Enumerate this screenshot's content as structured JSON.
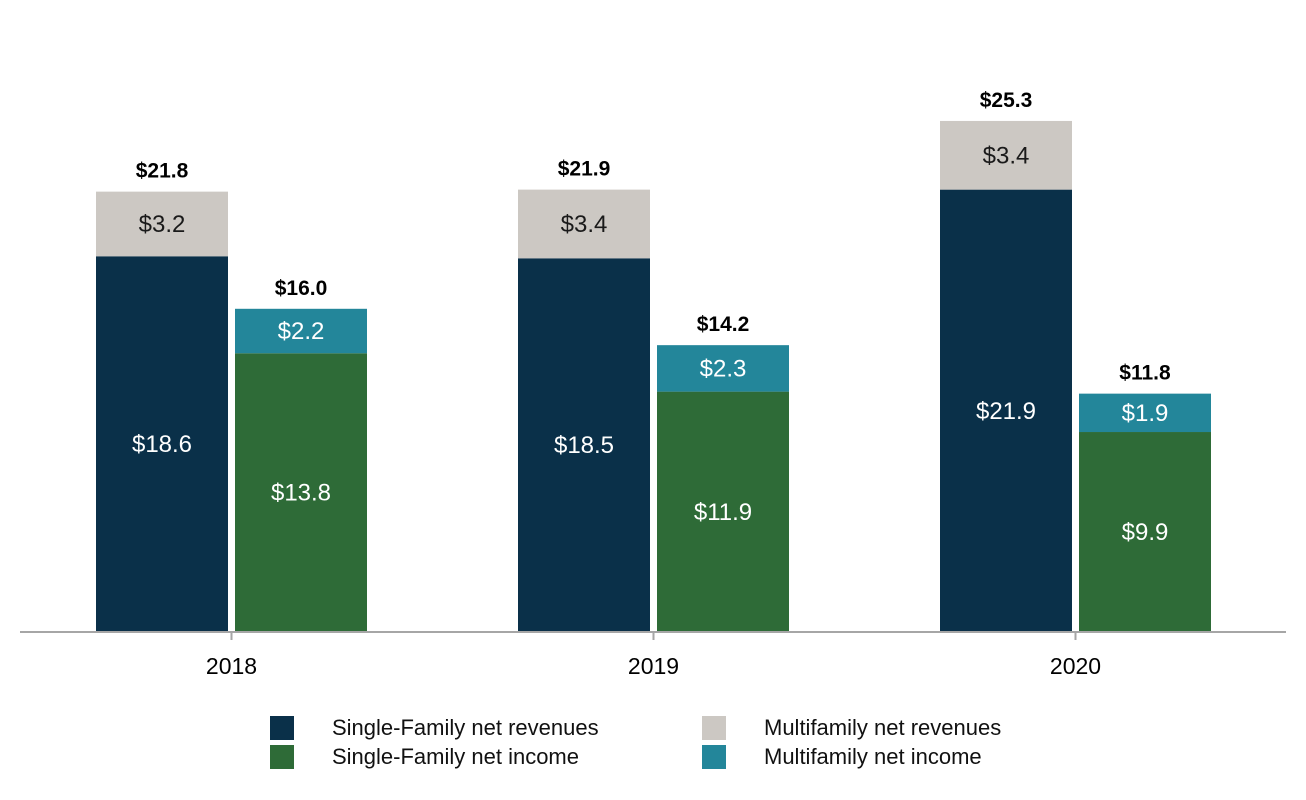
{
  "chart_data": {
    "type": "bar",
    "stacked": true,
    "categories": [
      "2018",
      "2019",
      "2020"
    ],
    "ylim": [
      0,
      28
    ],
    "colors": {
      "single_family_revenues": "#0a3049",
      "multifamily_revenues": "#ccc8c3",
      "single_family_income": "#2e6b37",
      "multifamily_income": "#23869a",
      "axis": "#a6a6a6"
    },
    "groups": [
      {
        "year": "2018",
        "revenues": {
          "single_family": 18.6,
          "single_family_label": "$18.6",
          "multifamily": 3.2,
          "multifamily_label": "$3.2",
          "total_label": "$21.8"
        },
        "income": {
          "single_family": 13.8,
          "single_family_label": "$13.8",
          "multifamily": 2.2,
          "multifamily_label": "$2.2",
          "total_label": "$16.0"
        }
      },
      {
        "year": "2019",
        "revenues": {
          "single_family": 18.5,
          "single_family_label": "$18.5",
          "multifamily": 3.4,
          "multifamily_label": "$3.4",
          "total_label": "$21.9"
        },
        "income": {
          "single_family": 11.9,
          "single_family_label": "$11.9",
          "multifamily": 2.3,
          "multifamily_label": "$2.3",
          "total_label": "$14.2"
        }
      },
      {
        "year": "2020",
        "revenues": {
          "single_family": 21.9,
          "single_family_label": "$21.9",
          "multifamily": 3.4,
          "multifamily_label": "$3.4",
          "total_label": "$25.3"
        },
        "income": {
          "single_family": 9.9,
          "single_family_label": "$9.9",
          "multifamily": 1.9,
          "multifamily_label": "$1.9",
          "total_label": "$11.8"
        }
      }
    ],
    "legend": [
      {
        "name": "Single-Family net revenues",
        "color": "#0a3049"
      },
      {
        "name": "Multifamily net revenues",
        "color": "#ccc8c3"
      },
      {
        "name": "Single-Family net income",
        "color": "#2e6b37"
      },
      {
        "name": "Multifamily net income",
        "color": "#23869a"
      }
    ],
    "legend_position": "bottom"
  }
}
